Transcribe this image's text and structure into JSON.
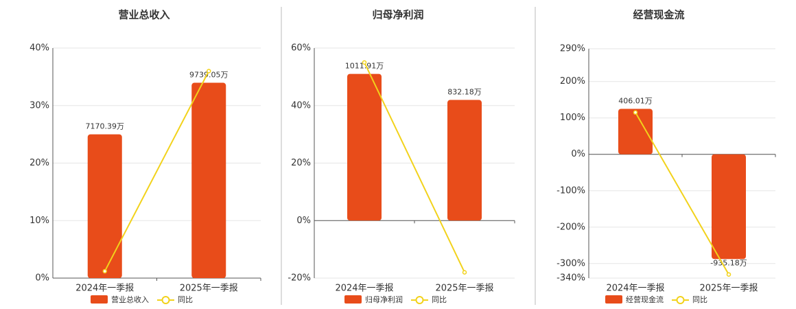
{
  "chart_data": [
    {
      "type": "bar-line",
      "title": "营业总收入",
      "categories": [
        "2024年一季报",
        "2025年一季报"
      ],
      "series": [
        {
          "name": "营业总收入",
          "type": "bar",
          "axis": "y2",
          "color": "#e84c1a",
          "values": [
            7170.39,
            9739.05
          ],
          "value_labels": [
            "7170.39万",
            "9739.05万"
          ]
        },
        {
          "name": "同比",
          "type": "line",
          "color": "#f2d21b",
          "values": [
            1.2,
            36
          ]
        }
      ],
      "ylim": [
        0,
        40
      ],
      "yticks": [
        {
          "value": 0,
          "label": "0%"
        },
        {
          "value": 10,
          "label": "10%"
        },
        {
          "value": 20,
          "label": "20%"
        },
        {
          "value": 30,
          "label": "30%"
        },
        {
          "value": 40,
          "label": "40%"
        }
      ],
      "y2lim": [
        0,
        11470
      ],
      "grid": true
    },
    {
      "type": "bar-line",
      "title": "归母净利润",
      "categories": [
        "2024年一季报",
        "2025年一季报"
      ],
      "series": [
        {
          "name": "归母净利润",
          "type": "bar",
          "axis": "y2",
          "color": "#e84c1a",
          "values": [
            1011.91,
            832.18
          ],
          "value_labels": [
            "1011.91万",
            "832.18万"
          ]
        },
        {
          "name": "同比",
          "type": "line",
          "color": "#f2d21b",
          "values": [
            55,
            -18
          ]
        }
      ],
      "ylim": [
        -20,
        60
      ],
      "yticks": [
        {
          "value": -20,
          "label": "-20%"
        },
        {
          "value": 0,
          "label": "0%"
        },
        {
          "value": 20,
          "label": "20%"
        },
        {
          "value": 40,
          "label": "40%"
        },
        {
          "value": 60,
          "label": "60%"
        }
      ],
      "y2lim": [
        -397,
        1190
      ],
      "grid": true
    },
    {
      "type": "bar-line",
      "title": "经营现金流",
      "categories": [
        "2024年一季报",
        "2025年一季报"
      ],
      "series": [
        {
          "name": "经营现金流",
          "type": "bar",
          "axis": "y2",
          "color": "#e84c1a",
          "values": [
            406.01,
            -935.18
          ],
          "value_labels": [
            "406.01万",
            "-935.18万"
          ]
        },
        {
          "name": "同比",
          "type": "line",
          "color": "#f2d21b",
          "values": [
            115,
            -330
          ]
        }
      ],
      "ylim": [
        -340,
        290
      ],
      "yticks": [
        {
          "value": -340,
          "label": "-340%"
        },
        {
          "value": -300,
          "label": "-300%"
        },
        {
          "value": -200,
          "label": "-200%"
        },
        {
          "value": -100,
          "label": "-100%"
        },
        {
          "value": 0,
          "label": "0%"
        },
        {
          "value": 100,
          "label": "100%"
        },
        {
          "value": 200,
          "label": "200%"
        },
        {
          "value": 290,
          "label": "290%"
        }
      ],
      "y2lim": [
        -1105,
        942
      ],
      "grid": true
    }
  ]
}
